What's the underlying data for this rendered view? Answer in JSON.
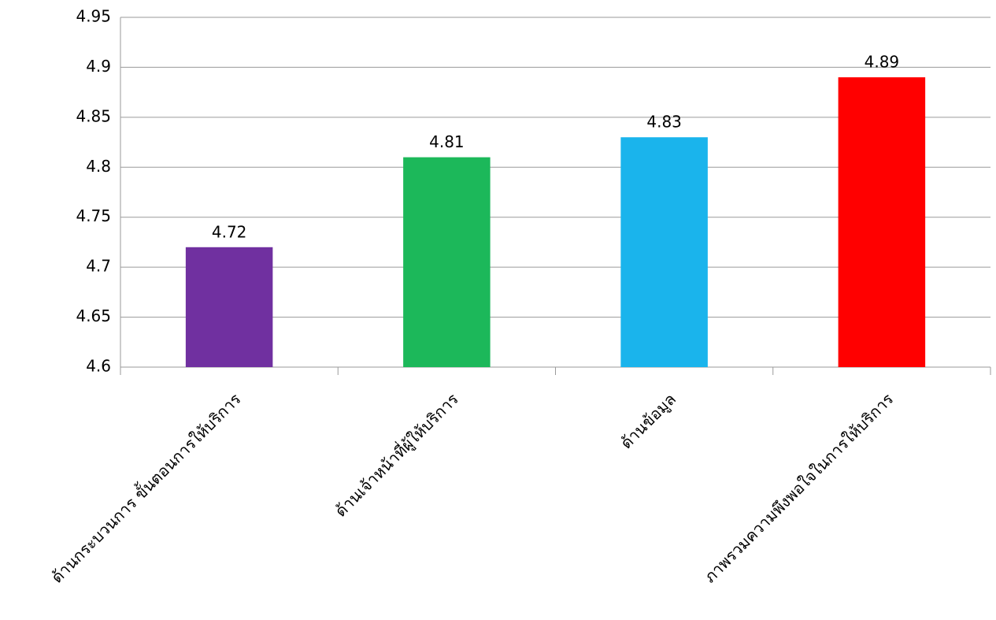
{
  "chart_data": {
    "type": "bar",
    "categories": [
      "ด้านกระบวนการ ขั้นตอนการให้บริการ",
      "ด้านเจ้าหน้าที่ผู้ให้บริการ",
      "ด้านข้อมูล",
      "ภาพรวมความพึงพอใจในการให้บริการ"
    ],
    "values": [
      4.72,
      4.81,
      4.83,
      4.89
    ],
    "colors": [
      "#7030a0",
      "#1cb85a",
      "#1ab4ec",
      "#ff0000"
    ],
    "ylim": [
      4.6,
      4.95
    ],
    "yticks": [
      4.6,
      4.65,
      4.7,
      4.75,
      4.8,
      4.85,
      4.9,
      4.95
    ],
    "grid": true
  }
}
